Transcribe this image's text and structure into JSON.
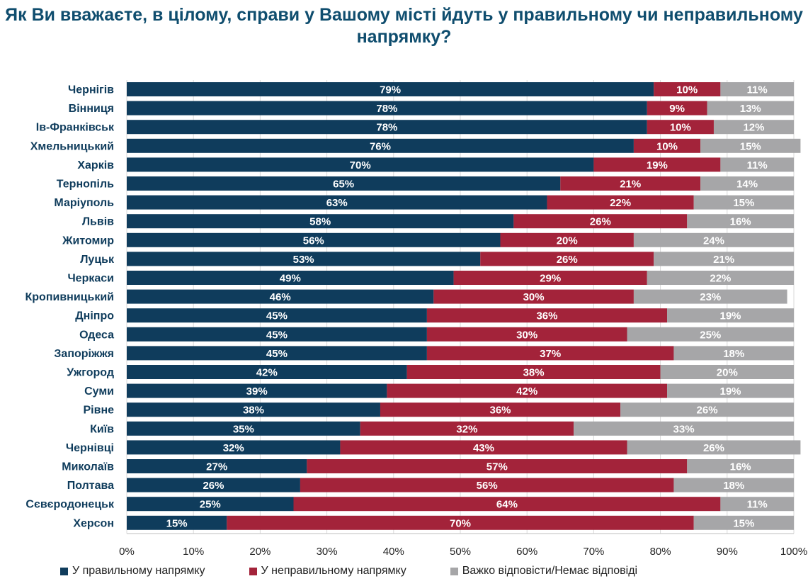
{
  "title": "Як Ви вважаєте, в цілому, справи у Вашому місті йдуть у правильному чи неправильному напрямку?",
  "colors": {
    "right": "#0f3c5c",
    "wrong": "#a3233a",
    "dk": "#a6a6a8",
    "grid": "#d9d9d9",
    "label_dark": "#1a1a1a"
  },
  "chart_data": {
    "type": "bar",
    "orientation": "horizontal",
    "stacked": true,
    "categories": [
      "Чернігів",
      "Вінниця",
      "Ів-Франківськ",
      "Хмельницький",
      "Харків",
      "Тернопіль",
      "Маріуполь",
      "Львів",
      "Житомир",
      "Луцьк",
      "Черкаси",
      "Кропивницький",
      "Дніпро",
      "Одеса",
      "Запоріжжя",
      "Ужгород",
      "Суми",
      "Рівне",
      "Київ",
      "Чернівці",
      "Миколаїв",
      "Полтава",
      "Сєвєродонецьк",
      "Херсон"
    ],
    "series": [
      {
        "name": "У правильному напрямку",
        "values": [
          79,
          78,
          78,
          76,
          70,
          65,
          63,
          58,
          56,
          53,
          49,
          46,
          45,
          45,
          45,
          42,
          39,
          38,
          35,
          32,
          27,
          26,
          25,
          15
        ]
      },
      {
        "name": "У неправильному напрямку",
        "values": [
          10,
          9,
          10,
          10,
          19,
          21,
          22,
          26,
          20,
          26,
          29,
          30,
          36,
          30,
          37,
          38,
          42,
          36,
          32,
          43,
          57,
          56,
          64,
          70
        ]
      },
      {
        "name": "Важко відповісти/Немає відповіді",
        "values": [
          11,
          13,
          12,
          15,
          11,
          14,
          15,
          16,
          24,
          21,
          22,
          23,
          19,
          25,
          18,
          20,
          19,
          26,
          33,
          26,
          16,
          18,
          11,
          15
        ]
      }
    ],
    "xlim": [
      0,
      100
    ],
    "xticks": [
      "0%",
      "10%",
      "20%",
      "30%",
      "40%",
      "50%",
      "60%",
      "70%",
      "80%",
      "90%",
      "100%"
    ],
    "grid": true,
    "legend_position": "bottom"
  }
}
